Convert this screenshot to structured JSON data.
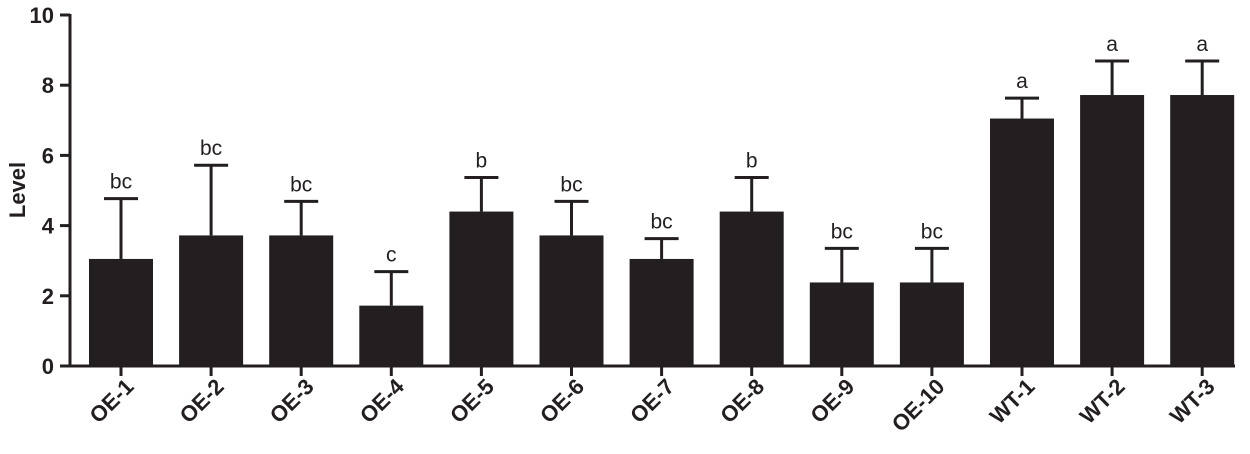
{
  "chart_data": {
    "type": "bar",
    "categories": [
      "OE-1",
      "OE-2",
      "OE-3",
      "OE-4",
      "OE-5",
      "OE-6",
      "OE-7",
      "OE-8",
      "OE-9",
      "OE-10",
      "WT-1",
      "WT-2",
      "WT-3"
    ],
    "values": [
      3.05,
      3.72,
      3.72,
      1.72,
      4.4,
      3.72,
      3.05,
      4.4,
      2.38,
      2.38,
      7.05,
      7.72,
      7.72
    ],
    "error_upper": [
      1.72,
      2.0,
      0.97,
      0.97,
      0.97,
      0.97,
      0.58,
      0.97,
      0.97,
      0.97,
      0.58,
      0.97,
      0.97
    ],
    "significance_labels": [
      "bc",
      "bc",
      "bc",
      "c",
      "b",
      "bc",
      "bc",
      "b",
      "bc",
      "bc",
      "a",
      "a",
      "a"
    ],
    "ylabel": "Level",
    "xlabel": "",
    "ylim": [
      0,
      10
    ],
    "yticks": [
      "0",
      "2",
      "4",
      "6",
      "8",
      "10"
    ],
    "ytick_values": [
      0,
      2,
      4,
      6,
      8,
      10
    ],
    "grid": false,
    "bar_color": "#231f20"
  }
}
